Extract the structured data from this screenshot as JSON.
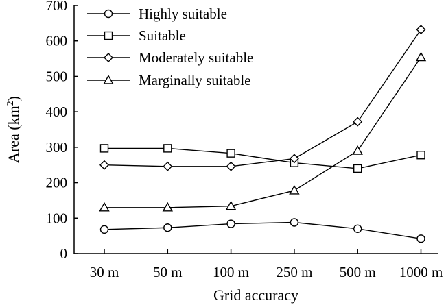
{
  "chart_data": {
    "type": "line",
    "xlabel": "Grid accuracy",
    "ylabel": "Area (km",
    "ylabel_sup": "2",
    "ylabel_close": ")",
    "categories": [
      "30 m",
      "50 m",
      "100 m",
      "250 m",
      "500 m",
      "1000 m"
    ],
    "ylim": [
      0,
      700
    ],
    "yticks": [
      0,
      100,
      200,
      300,
      400,
      500,
      600,
      700
    ],
    "grid": false,
    "legend_position": "top-left",
    "series": [
      {
        "name": "Highly suitable",
        "marker": "circle",
        "values": [
          68,
          73,
          84,
          88,
          70,
          42
        ]
      },
      {
        "name": "Suitable",
        "marker": "square",
        "values": [
          297,
          297,
          283,
          256,
          240,
          278
        ]
      },
      {
        "name": "Moderately suitable",
        "marker": "diamond",
        "values": [
          250,
          246,
          246,
          268,
          372,
          632
        ]
      },
      {
        "name": "Marginally suitable",
        "marker": "triangle",
        "values": [
          130,
          130,
          134,
          178,
          290,
          554
        ]
      }
    ]
  }
}
